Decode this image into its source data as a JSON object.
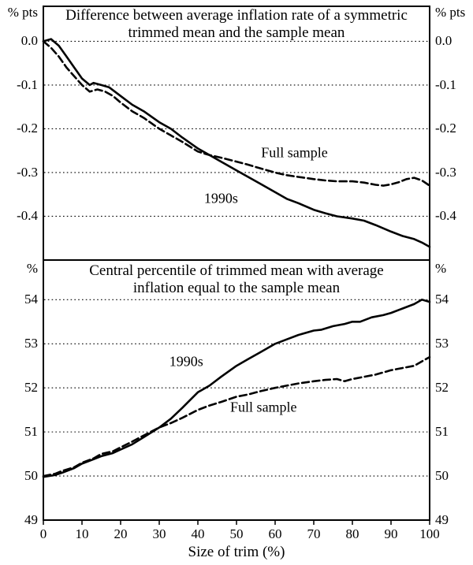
{
  "chart_data": [
    {
      "type": "line",
      "title": "Difference between average inflation rate of a symmetric trimmed mean and the sample mean",
      "unit": "% pts",
      "xlim": [
        0,
        100
      ],
      "ylim": [
        -0.5,
        0.08
      ],
      "grid": "dotted-horizontal",
      "yticks": [
        {
          "v": 0.0,
          "label": "0.0"
        },
        {
          "v": -0.1,
          "label": "-0.1"
        },
        {
          "v": -0.2,
          "label": "-0.2"
        },
        {
          "v": -0.3,
          "label": "-0.3"
        },
        {
          "v": -0.4,
          "label": "-0.4"
        }
      ],
      "series": [
        {
          "name": "1990s",
          "style": "solid",
          "points": [
            [
              0,
              0.0
            ],
            [
              2,
              0.005
            ],
            [
              4,
              -0.01
            ],
            [
              6,
              -0.035
            ],
            [
              8,
              -0.06
            ],
            [
              10,
              -0.085
            ],
            [
              12,
              -0.1
            ],
            [
              13,
              -0.095
            ],
            [
              15,
              -0.1
            ],
            [
              17,
              -0.105
            ],
            [
              20,
              -0.125
            ],
            [
              23,
              -0.145
            ],
            [
              26,
              -0.16
            ],
            [
              30,
              -0.185
            ],
            [
              33,
              -0.2
            ],
            [
              36,
              -0.22
            ],
            [
              40,
              -0.245
            ],
            [
              43,
              -0.26
            ],
            [
              46,
              -0.275
            ],
            [
              50,
              -0.295
            ],
            [
              53,
              -0.31
            ],
            [
              56,
              -0.325
            ],
            [
              60,
              -0.345
            ],
            [
              63,
              -0.36
            ],
            [
              66,
              -0.37
            ],
            [
              70,
              -0.385
            ],
            [
              73,
              -0.393
            ],
            [
              76,
              -0.4
            ],
            [
              80,
              -0.405
            ],
            [
              83,
              -0.41
            ],
            [
              86,
              -0.42
            ],
            [
              90,
              -0.435
            ],
            [
              93,
              -0.445
            ],
            [
              96,
              -0.452
            ],
            [
              98,
              -0.46
            ],
            [
              100,
              -0.47
            ]
          ]
        },
        {
          "name": "Full sample",
          "style": "dashed",
          "points": [
            [
              0,
              0.0
            ],
            [
              2,
              -0.015
            ],
            [
              4,
              -0.035
            ],
            [
              6,
              -0.06
            ],
            [
              8,
              -0.08
            ],
            [
              10,
              -0.1
            ],
            [
              12,
              -0.115
            ],
            [
              14,
              -0.11
            ],
            [
              16,
              -0.115
            ],
            [
              18,
              -0.125
            ],
            [
              20,
              -0.14
            ],
            [
              23,
              -0.16
            ],
            [
              26,
              -0.175
            ],
            [
              30,
              -0.2
            ],
            [
              33,
              -0.215
            ],
            [
              36,
              -0.23
            ],
            [
              40,
              -0.252
            ],
            [
              43,
              -0.26
            ],
            [
              46,
              -0.266
            ],
            [
              50,
              -0.275
            ],
            [
              53,
              -0.282
            ],
            [
              56,
              -0.29
            ],
            [
              60,
              -0.3
            ],
            [
              63,
              -0.306
            ],
            [
              66,
              -0.31
            ],
            [
              70,
              -0.315
            ],
            [
              73,
              -0.318
            ],
            [
              76,
              -0.32
            ],
            [
              80,
              -0.32
            ],
            [
              83,
              -0.323
            ],
            [
              86,
              -0.328
            ],
            [
              88,
              -0.33
            ],
            [
              90,
              -0.327
            ],
            [
              92,
              -0.322
            ],
            [
              94,
              -0.315
            ],
            [
              96,
              -0.312
            ],
            [
              98,
              -0.318
            ],
            [
              100,
              -0.33
            ]
          ]
        }
      ],
      "annotations": [
        {
          "text": "Full sample",
          "x": 65,
          "y": -0.255
        },
        {
          "text": "1990s",
          "x": 46,
          "y": -0.36
        }
      ]
    },
    {
      "type": "line",
      "title": "Central percentile of trimmed mean with average inflation equal to the sample mean",
      "unit": "%",
      "xlabel": "Size of trim (%)",
      "xlim": [
        0,
        100
      ],
      "ylim": [
        49,
        54.9
      ],
      "grid": "dotted-horizontal",
      "xticks": [
        0,
        10,
        20,
        30,
        40,
        50,
        60,
        70,
        80,
        90,
        100
      ],
      "yticks": [
        {
          "v": 54,
          "label": "54"
        },
        {
          "v": 53,
          "label": "53"
        },
        {
          "v": 52,
          "label": "52"
        },
        {
          "v": 51,
          "label": "51"
        },
        {
          "v": 50,
          "label": "50"
        },
        {
          "v": 49,
          "label": "49"
        }
      ],
      "series": [
        {
          "name": "1990s",
          "style": "solid",
          "points": [
            [
              0,
              49.98
            ],
            [
              3,
              50.02
            ],
            [
              5,
              50.08
            ],
            [
              8,
              50.18
            ],
            [
              10,
              50.28
            ],
            [
              13,
              50.38
            ],
            [
              15,
              50.45
            ],
            [
              18,
              50.52
            ],
            [
              20,
              50.6
            ],
            [
              23,
              50.72
            ],
            [
              26,
              50.88
            ],
            [
              30,
              51.1
            ],
            [
              33,
              51.3
            ],
            [
              36,
              51.55
            ],
            [
              40,
              51.9
            ],
            [
              43,
              52.05
            ],
            [
              46,
              52.25
            ],
            [
              50,
              52.5
            ],
            [
              53,
              52.65
            ],
            [
              56,
              52.8
            ],
            [
              60,
              53.0
            ],
            [
              63,
              53.1
            ],
            [
              66,
              53.2
            ],
            [
              70,
              53.3
            ],
            [
              72,
              53.32
            ],
            [
              75,
              53.4
            ],
            [
              78,
              53.45
            ],
            [
              80,
              53.5
            ],
            [
              82,
              53.5
            ],
            [
              85,
              53.6
            ],
            [
              88,
              53.65
            ],
            [
              90,
              53.7
            ],
            [
              93,
              53.8
            ],
            [
              96,
              53.9
            ],
            [
              98,
              54.0
            ],
            [
              100,
              53.95
            ]
          ]
        },
        {
          "name": "Full sample",
          "style": "dashed",
          "points": [
            [
              0,
              50.0
            ],
            [
              3,
              50.05
            ],
            [
              5,
              50.12
            ],
            [
              8,
              50.2
            ],
            [
              10,
              50.3
            ],
            [
              13,
              50.4
            ],
            [
              15,
              50.5
            ],
            [
              18,
              50.56
            ],
            [
              20,
              50.65
            ],
            [
              23,
              50.78
            ],
            [
              26,
              50.92
            ],
            [
              30,
              51.1
            ],
            [
              33,
              51.2
            ],
            [
              36,
              51.32
            ],
            [
              40,
              51.5
            ],
            [
              43,
              51.6
            ],
            [
              46,
              51.68
            ],
            [
              50,
              51.8
            ],
            [
              53,
              51.85
            ],
            [
              56,
              51.92
            ],
            [
              60,
              52.0
            ],
            [
              63,
              52.05
            ],
            [
              66,
              52.1
            ],
            [
              70,
              52.15
            ],
            [
              73,
              52.18
            ],
            [
              76,
              52.2
            ],
            [
              78,
              52.15
            ],
            [
              80,
              52.2
            ],
            [
              83,
              52.25
            ],
            [
              86,
              52.3
            ],
            [
              90,
              52.4
            ],
            [
              93,
              52.45
            ],
            [
              96,
              52.5
            ],
            [
              98,
              52.6
            ],
            [
              100,
              52.7
            ]
          ]
        }
      ],
      "annotations": [
        {
          "text": "1990s",
          "x": 37,
          "y": 52.6
        },
        {
          "text": "Full sample",
          "x": 57,
          "y": 51.55
        }
      ]
    }
  ]
}
